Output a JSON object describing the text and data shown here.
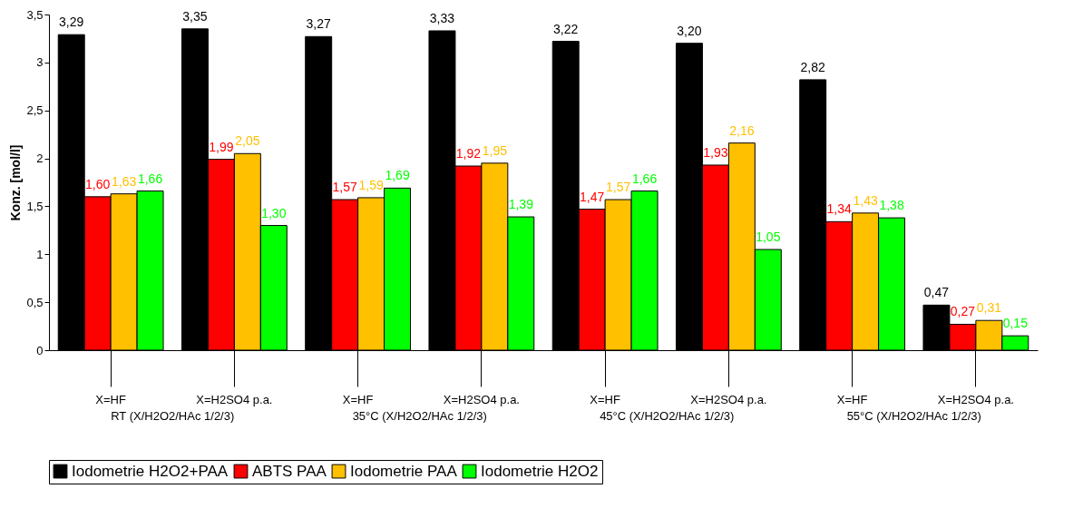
{
  "chart_data": {
    "type": "bar",
    "ylabel": "Konz. [mol/l]",
    "categories": [
      "X=HF",
      "X=H2SO4 p.a.",
      "X=HF",
      "X=H2SO4 p.a.",
      "X=HF",
      "X=H2SO4 p.a.",
      "X=HF",
      "X=H2SO4 p.a."
    ],
    "annotations": [
      "RT (X/H2O2/HAc 1/2/3)",
      "35°C (X/H2O2/HAc 1/2/3)",
      "45°C (X/H2O2/HAc 1/2/3)",
      "55°C (X/H2O2/HAc 1/2/3)"
    ],
    "series": [
      {
        "name": "Iodometrie H2O2+PAA",
        "color": "#000000",
        "values": [
          3.29,
          3.35,
          3.27,
          3.33,
          3.22,
          3.2,
          2.82,
          0.47
        ],
        "value_labels": [
          "3,29",
          "3,35",
          "3,27",
          "3,33",
          "3,22",
          "3,20",
          "2,82",
          "0,47"
        ]
      },
      {
        "name": "ABTS PAA",
        "color": "#ff0000",
        "values": [
          1.6,
          1.99,
          1.57,
          1.92,
          1.47,
          1.93,
          1.34,
          0.27
        ],
        "value_labels": [
          "1,60",
          "1,99",
          "1,57",
          "1,92",
          "1,47",
          "1,93",
          "1,34",
          "0,27"
        ]
      },
      {
        "name": "Iodometrie PAA",
        "color": "#ffc000",
        "values": [
          1.63,
          2.05,
          1.59,
          1.95,
          1.57,
          2.16,
          1.43,
          0.31
        ],
        "value_labels": [
          "1,63",
          "2,05",
          "1,59",
          "1,95",
          "1,57",
          "2,16",
          "1,43",
          "0,31"
        ]
      },
      {
        "name": "Iodometrie H2O2",
        "color": "#00ff00",
        "values": [
          1.66,
          1.3,
          1.69,
          1.39,
          1.66,
          1.05,
          1.38,
          0.15
        ],
        "value_labels": [
          "1,66",
          "1,30",
          "1,69",
          "1,39",
          "1,66",
          "1,05",
          "1,38",
          "0,15"
        ]
      }
    ],
    "ylim": [
      0,
      3.5
    ],
    "yticks": [
      0,
      {
        "value": 0.5,
        "label": "0,5"
      },
      1,
      {
        "value": 1.5,
        "label": "1,5"
      },
      2,
      {
        "value": 2.5,
        "label": "2,5"
      },
      3,
      {
        "value": 3.5,
        "label": "3,5"
      }
    ],
    "legend": "bottom"
  }
}
